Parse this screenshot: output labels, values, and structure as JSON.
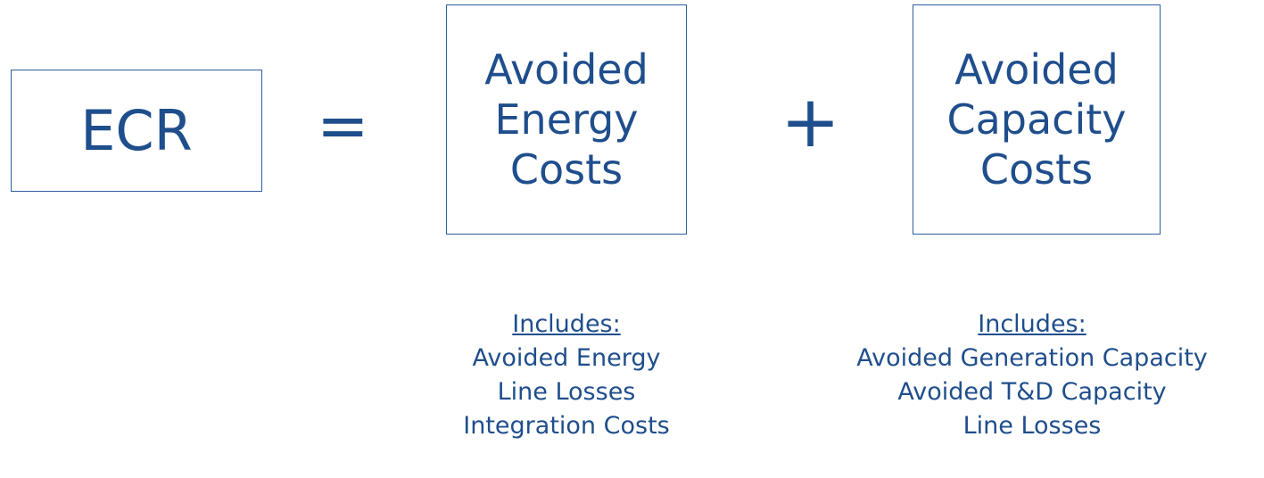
{
  "equation": {
    "left": "ECR",
    "equals": "=",
    "plus": "+",
    "terms": [
      {
        "lines": [
          "Avoided",
          "Energy",
          "Costs"
        ],
        "includes_label": "Includes:",
        "includes": [
          "Avoided Energy",
          "Line Losses",
          "Integration Costs"
        ]
      },
      {
        "lines": [
          "Avoided",
          "Capacity",
          "Costs"
        ],
        "includes_label": "Includes:",
        "includes": [
          "Avoided Generation Capacity",
          "Avoided T&D Capacity",
          "Line Losses"
        ]
      }
    ]
  }
}
